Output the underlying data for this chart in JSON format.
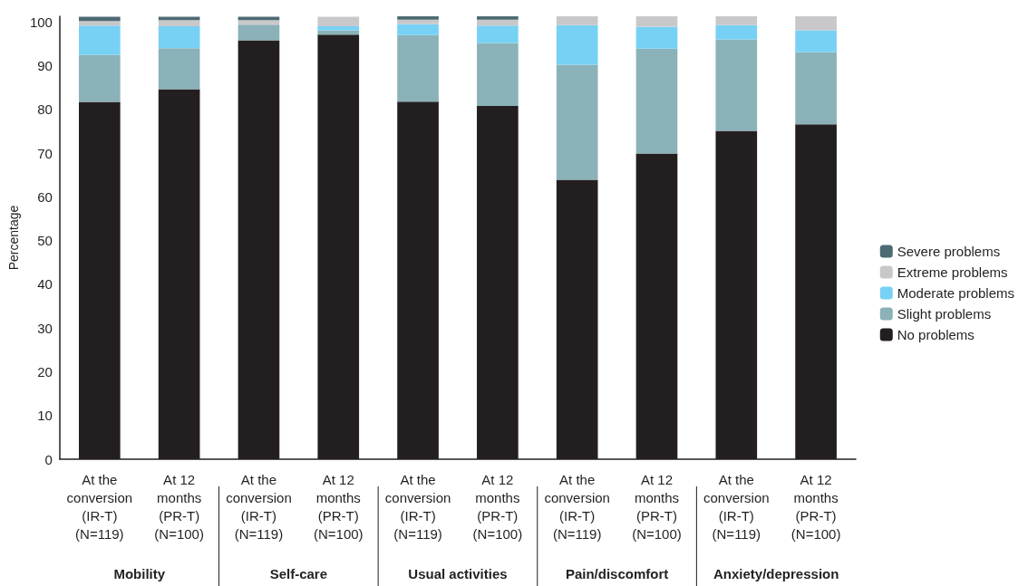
{
  "chart_data": {
    "type": "bar",
    "stacked": true,
    "ylabel": "Percentage",
    "categories": [
      "At the\nconversion\n(IR-T)\n(N=119)",
      "At 12\nmonths\n(PR-T)\n(N=100)",
      "At the\nconversion\n(IR-T)\n(N=119)",
      "At 12\nmonths\n(PR-T)\n(N=100)",
      "At the\nconversion\n(IR-T)\n(N=119)",
      "At 12\nmonths\n(PR-T)\n(N=100)",
      "At the\nconversion\n(IR-T)\n(N=119)",
      "At 12\nmonths\n(PR-T)\n(N=100)",
      "At the\nconversion\n(IR-T)\n(N=119)",
      "At 12\nmonths\n(PR-T)\n(N=100)"
    ],
    "series": [
      {
        "name": "No problems",
        "color": "#231f20",
        "values": [
          81.7,
          84.6,
          95.8,
          97.1,
          81.8,
          80.8,
          63.9,
          69.9,
          75.1,
          76.6
        ]
      },
      {
        "name": "Slight problems",
        "color": "#8ab2b8",
        "values": [
          10.8,
          9.4,
          3.6,
          1.0,
          15.2,
          14.4,
          26.3,
          24.0,
          20.9,
          16.5
        ]
      },
      {
        "name": "Moderate problems",
        "color": "#77d1f5",
        "values": [
          6.7,
          5.0,
          0,
          0.9,
          2.5,
          4.0,
          9.1,
          5.0,
          3.3,
          5.0
        ]
      },
      {
        "name": "Extreme problems",
        "color": "#c8c8ca",
        "values": [
          1.0,
          1.4,
          1.0,
          2.2,
          1.0,
          1.3,
          2.0,
          2.4,
          2.0,
          3.2
        ]
      },
      {
        "name": "Severe problems",
        "color": "#4d6a73",
        "values": [
          1.0,
          0.8,
          0.8,
          0,
          0.8,
          0.8,
          0,
          0,
          0,
          0
        ]
      }
    ],
    "ylim": [
      0,
      101.3
    ],
    "yticks": [
      0,
      10,
      20,
      30,
      40,
      50,
      60,
      70,
      80,
      90,
      100
    ],
    "grid": false,
    "legend": "right",
    "annotations": [
      "Mobility",
      "Self-care",
      "Usual activities",
      "Pain/discomfort",
      "Anxiety/depression"
    ]
  }
}
